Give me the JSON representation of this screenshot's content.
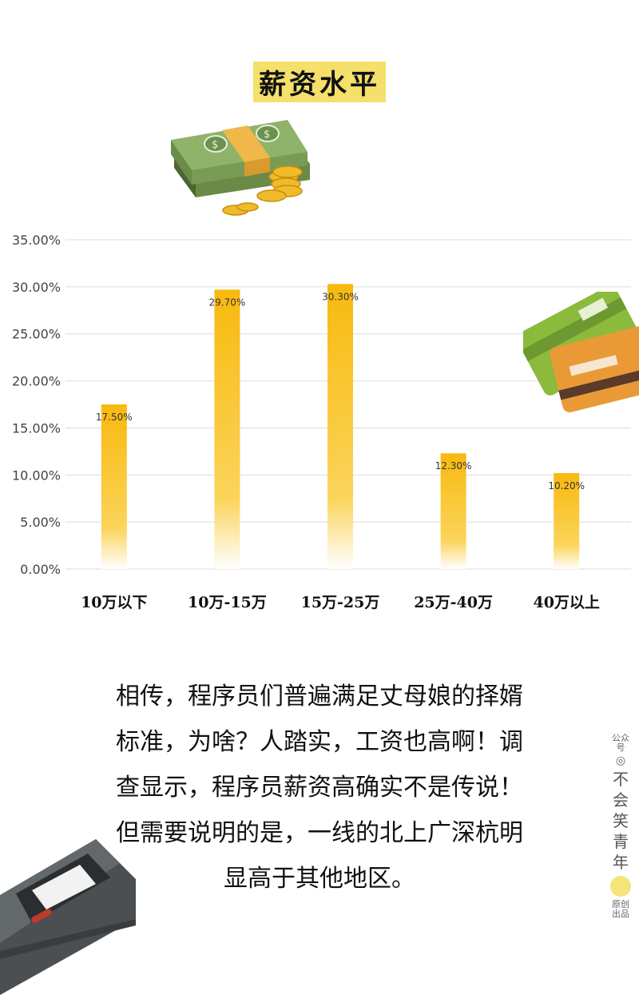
{
  "page": {
    "title": "薪资水平",
    "description_lines": [
      "相传，程序员们普遍满足丈母娘的择婿",
      "标准，为啥？人踏实，工资也高啊！调",
      "查显示，程序员薪资高确实不是传说！",
      "但需要说明的是，一线的北上广深杭明",
      "显高于其他地区。"
    ],
    "watermark": {
      "top": "公众号",
      "name": [
        "不",
        "会",
        "笑",
        "青",
        "年"
      ],
      "bottom": "原创出品"
    }
  },
  "colors": {
    "bar_top": "#f8b90f",
    "bar_bottom": "#ffffff",
    "grid": "#dcdcdc",
    "title_bg": "#f4e06a"
  },
  "chart_data": {
    "type": "bar",
    "categories": [
      "10万以下",
      "10万-15万",
      "15万-25万",
      "25万-40万",
      "40万以上"
    ],
    "values": [
      17.5,
      29.7,
      30.3,
      12.3,
      10.2
    ],
    "value_labels": [
      "17.50%",
      "29.70%",
      "30.30%",
      "12.30%",
      "10.20%"
    ],
    "yticks": [
      {
        "value": 0,
        "label": "0.00%"
      },
      {
        "value": 5,
        "label": "5.00%"
      },
      {
        "value": 10,
        "label": "10.00%"
      },
      {
        "value": 15,
        "label": "15.00%"
      },
      {
        "value": 20,
        "label": "20.00%"
      },
      {
        "value": 25,
        "label": "25.00%"
      },
      {
        "value": 30,
        "label": "30.00%"
      },
      {
        "value": 35,
        "label": "35.00%"
      }
    ],
    "ylim": [
      0,
      35
    ],
    "grid": true,
    "title": "",
    "xlabel": "",
    "ylabel": ""
  }
}
